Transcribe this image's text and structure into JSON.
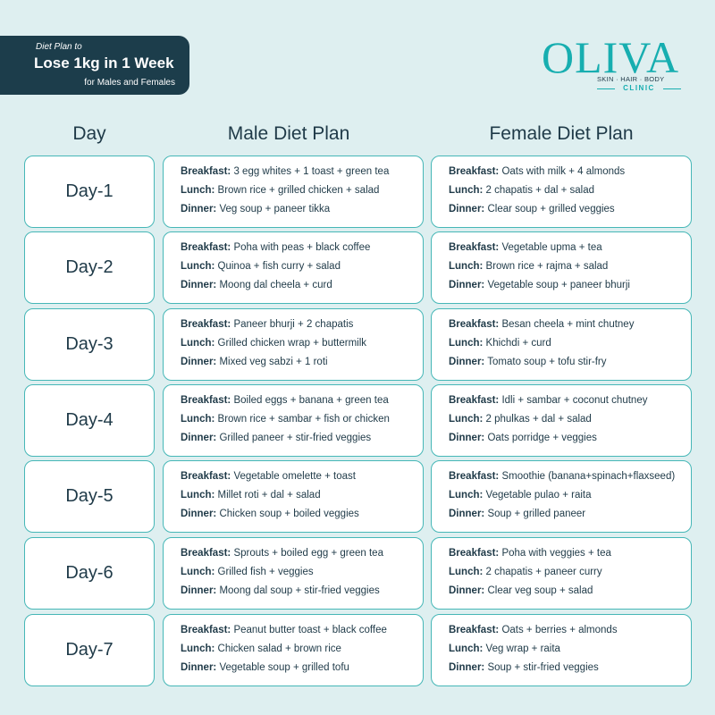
{
  "header": {
    "pretitle": "Diet Plan to",
    "title": "Lose 1kg in 1 Week",
    "subtitle": "for Males and Females"
  },
  "logo": {
    "word": "OLIVA",
    "tagline": "SKIN · HAIR · BODY",
    "clinic": "CLINIC"
  },
  "columns": {
    "day": "Day",
    "male": "Male Diet Plan",
    "female": "Female Diet Plan"
  },
  "labels": {
    "breakfast": "Breakfast:",
    "lunch": "Lunch:",
    "dinner": "Dinner:"
  },
  "days": [
    {
      "day": "Day-1",
      "male": [
        "3 egg whites + 1 toast + green tea",
        "Brown rice + grilled chicken + salad",
        "Veg soup + paneer tikka"
      ],
      "female": [
        "Oats with milk + 4 almonds",
        "2 chapatis + dal + salad",
        "Clear soup + grilled veggies"
      ]
    },
    {
      "day": "Day-2",
      "male": [
        "Poha with peas + black coffee",
        "Quinoa + fish curry + salad",
        "Moong dal cheela + curd"
      ],
      "female": [
        "Vegetable upma + tea",
        "Brown rice + rajma + salad",
        "Vegetable soup + paneer bhurji"
      ]
    },
    {
      "day": "Day-3",
      "male": [
        "Paneer bhurji + 2 chapatis",
        "Grilled chicken wrap + buttermilk",
        "Mixed veg sabzi + 1 roti"
      ],
      "female": [
        "Besan cheela + mint chutney",
        "Khichdi + curd",
        "Tomato soup + tofu stir-fry"
      ]
    },
    {
      "day": "Day-4",
      "male": [
        "Boiled eggs + banana + green tea",
        "Brown rice + sambar + fish or chicken",
        "Grilled paneer + stir-fried veggies"
      ],
      "female": [
        "Idli + sambar + coconut chutney",
        "2 phulkas + dal + salad",
        "Oats porridge + veggies"
      ]
    },
    {
      "day": "Day-5",
      "male": [
        "Vegetable omelette + toast",
        "Millet roti + dal + salad",
        "Chicken soup + boiled veggies"
      ],
      "female": [
        "Smoothie (banana+spinach+flaxseed)",
        "Vegetable pulao + raita",
        "Soup + grilled paneer"
      ]
    },
    {
      "day": "Day-6",
      "male": [
        "Sprouts + boiled egg + green tea",
        "Grilled fish + veggies",
        "Moong dal soup + stir-fried veggies"
      ],
      "female": [
        "Poha with veggies + tea",
        "2 chapatis + paneer curry",
        "Clear veg soup + salad"
      ]
    },
    {
      "day": "Day-7",
      "male": [
        "Peanut butter toast + black coffee",
        "Chicken salad + brown rice",
        "Vegetable soup + grilled tofu"
      ],
      "female": [
        "Oats + berries + almonds",
        "Veg wrap + raita",
        "Soup + stir-fried veggies"
      ]
    }
  ],
  "colors": {
    "background": "#deeff0",
    "badge": "#1c3d4b",
    "accent": "#17aeb0",
    "border": "#46b7b7",
    "text": "#1f3a48"
  }
}
